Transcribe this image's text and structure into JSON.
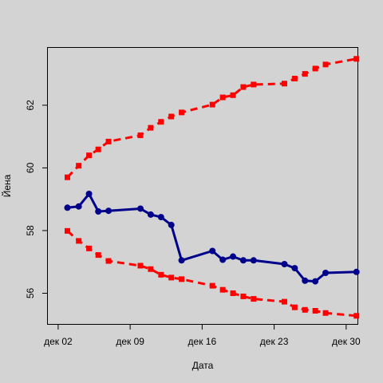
{
  "chart_data": {
    "type": "line",
    "title": "",
    "xlabel": "Дата",
    "ylabel": "Йена",
    "x_ticks": [
      "дек 02",
      "дек 09",
      "дек 16",
      "дек 23",
      "дек 30"
    ],
    "x_tick_values": [
      2,
      9,
      16,
      23,
      30
    ],
    "y_ticks": [
      "56",
      "58",
      "60",
      "62"
    ],
    "y_tick_values": [
      56,
      58,
      60,
      62
    ],
    "xlim": [
      1.0,
      31.1
    ],
    "ylim": [
      55.02,
      63.83
    ],
    "grid": false,
    "legend": "none",
    "series": [
      {
        "color": "#00008b",
        "style": "solid",
        "x": [
          2.9,
          4.0,
          5.0,
          5.9,
          6.9,
          10.0,
          11.0,
          12.0,
          13.0,
          14.0,
          17.0,
          18.0,
          19.0,
          20.0,
          21.0,
          24.0,
          25.0,
          26.0,
          27.0,
          28.0,
          31.0
        ],
        "values": [
          58.73,
          58.77,
          59.17,
          58.61,
          58.63,
          58.7,
          58.51,
          58.43,
          58.18,
          57.05,
          57.35,
          57.07,
          57.17,
          57.05,
          57.05,
          56.93,
          56.8,
          56.4,
          56.38,
          56.65,
          56.68
        ]
      },
      {
        "color": "#ff0000",
        "style": "dashed",
        "x": [
          2.9,
          4.0,
          5.0,
          5.9,
          6.9,
          10.0,
          11.0,
          12.0,
          13.0,
          14.0,
          17.0,
          18.0,
          19.0,
          20.0,
          21.0,
          24.0,
          25.0,
          26.0,
          27.0,
          28.0,
          31.0
        ],
        "values": [
          59.7,
          60.07,
          60.4,
          60.59,
          60.84,
          61.04,
          61.28,
          61.47,
          61.64,
          61.77,
          62.02,
          62.25,
          62.32,
          62.58,
          62.66,
          62.69,
          62.85,
          63.0,
          63.17,
          63.3,
          63.48
        ]
      },
      {
        "color": "#ff0000",
        "style": "dashed",
        "x": [
          2.9,
          4.0,
          5.0,
          5.9,
          6.9,
          10.0,
          11.0,
          12.0,
          13.0,
          14.0,
          17.0,
          18.0,
          19.0,
          20.0,
          21.0,
          24.0,
          25.0,
          26.0,
          27.0,
          28.0,
          31.0
        ],
        "values": [
          57.99,
          57.67,
          57.43,
          57.22,
          57.03,
          56.88,
          56.77,
          56.59,
          56.5,
          56.45,
          56.24,
          56.11,
          56.0,
          55.9,
          55.82,
          55.73,
          55.55,
          55.47,
          55.44,
          55.37,
          55.28
        ]
      }
    ]
  }
}
